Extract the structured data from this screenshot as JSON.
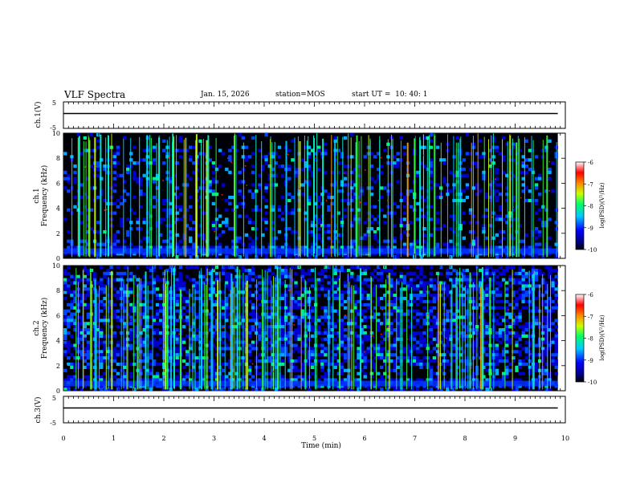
{
  "header": {
    "title": "VLF Spectra",
    "date": "Jan. 15, 2026",
    "station": "station=MOS",
    "start_ut": "start UT =  10: 40: 1"
  },
  "chart_data": [
    {
      "type": "line",
      "ylabel": "ch.1(V)",
      "ylim": [
        -5,
        5
      ],
      "yticks": [
        "5",
        "-5"
      ],
      "xlim": [
        0,
        10
      ],
      "series": [
        {
          "x": [
            0,
            9.85
          ],
          "y": [
            0,
            0
          ]
        }
      ]
    },
    {
      "type": "heatmap",
      "ylabel_line1": "ch.1",
      "ylabel_line2": "Frequency (kHz)",
      "ylim": [
        0,
        10
      ],
      "yticks": [
        "0",
        "2",
        "4",
        "6",
        "8",
        "10"
      ],
      "xlim": [
        0,
        10
      ],
      "data_xmax": 9.85,
      "colorbar": {
        "label": "log(PSD)(V²/Hz)",
        "range": [
          -10,
          -6
        ],
        "ticks": [
          "-6",
          "-7",
          "-8",
          "-9",
          "-10"
        ]
      }
    },
    {
      "type": "heatmap",
      "ylabel_line1": "ch.2",
      "ylabel_line2": "Frequency (kHz)",
      "ylim": [
        0,
        10
      ],
      "yticks": [
        "0",
        "2",
        "4",
        "6",
        "8",
        "10"
      ],
      "xlim": [
        0,
        10
      ],
      "data_xmax": 9.85,
      "colorbar": {
        "label": "log(PSD)(V²/Hz)",
        "range": [
          -10,
          -6
        ],
        "ticks": [
          "-6",
          "-7",
          "-8",
          "-9",
          "-10"
        ]
      }
    },
    {
      "type": "line",
      "ylabel": "ch.3(V)",
      "ylim": [
        -5,
        5
      ],
      "yticks": [
        "5",
        "-5"
      ],
      "xlim": [
        0,
        10
      ],
      "xlabel": "Time (min)",
      "xticks": [
        "0",
        "1",
        "2",
        "3",
        "4",
        "5",
        "6",
        "7",
        "8",
        "9",
        "10"
      ],
      "series": [
        {
          "x": [
            0,
            9.85
          ],
          "y": [
            0,
            0
          ]
        }
      ]
    }
  ]
}
